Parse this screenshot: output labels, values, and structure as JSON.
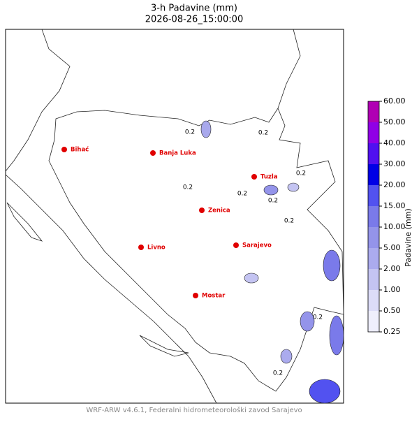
{
  "title": "3-h Padavine (mm)",
  "subtitle": "2026-08-26_15:00:00",
  "cities": [
    {
      "name": "Bihać"
    },
    {
      "name": "Banja Luka"
    },
    {
      "name": "Tuzla"
    },
    {
      "name": "Zenica"
    },
    {
      "name": "Sarajevo"
    },
    {
      "name": "Livno"
    },
    {
      "name": "Mostar"
    }
  ],
  "contour_labels": [
    "0.2",
    "0.2",
    "0.2",
    "0.2",
    "0.2",
    "0.2",
    "0.2",
    "0.2",
    "0.2"
  ],
  "colorbar": {
    "label": "Padavine (mm)",
    "ticks": [
      {
        "value": 0.25,
        "label": "0.25"
      },
      {
        "value": 0.5,
        "label": "0.50"
      },
      {
        "value": 1,
        "label": "1.00"
      },
      {
        "value": 2,
        "label": "2.00"
      },
      {
        "value": 5,
        "label": "5.00"
      },
      {
        "value": 10,
        "label": "10.00"
      },
      {
        "value": 15,
        "label": "15.00"
      },
      {
        "value": 20,
        "label": "20.00"
      },
      {
        "value": 30,
        "label": "30.00"
      },
      {
        "value": 40,
        "label": "40.00"
      },
      {
        "value": 50,
        "label": "50.00"
      },
      {
        "value": 60,
        "label": "60.00"
      }
    ],
    "colors": [
      "#eeeefc",
      "#dcdcf8",
      "#c4c4f2",
      "#ababee",
      "#9494ea",
      "#7a7aea",
      "#5252f0",
      "#0000e6",
      "#5010f0",
      "#9000e6",
      "#b000b4"
    ]
  },
  "footer": "WRF-ARW v4.6.1, Federalni hidrometeorološki zavod Sarajevo"
}
